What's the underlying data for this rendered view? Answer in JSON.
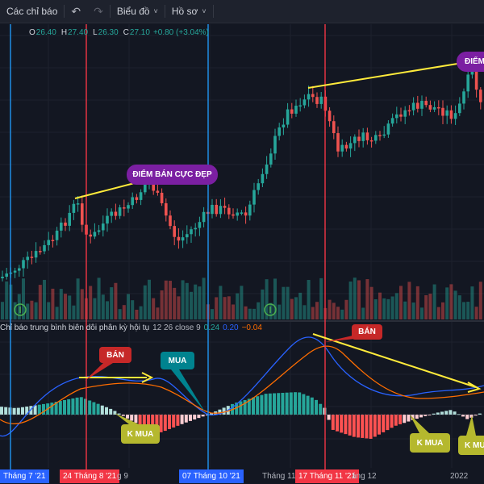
{
  "toolbar": {
    "indicators_label": "Các chỉ báo",
    "undo_icon": "undo-icon",
    "redo_icon": "redo-icon",
    "charts_label": "Biểu đồ",
    "profile_label": "Hồ sơ",
    "chevron": "˅"
  },
  "ohlc": {
    "o_label": "O",
    "o_value": "26.40",
    "h_label": "H",
    "h_value": "27.40",
    "l_label": "L",
    "l_value": "26.30",
    "c_label": "C",
    "c_value": "27.10",
    "change": "+0.80 (+3.04%)"
  },
  "indicator_legend": {
    "name": "Chỉ báo trung bình biên dôi phân kỳ hội tụ",
    "params": "12 26 close 9",
    "v1": "0.24",
    "v2": "0.20",
    "v3": "−0.04"
  },
  "annotations": {
    "sell1": "ĐIỂM BÁN CỰC ĐẸP",
    "sell2": "ĐIỂM",
    "ban1": "BÁN",
    "ban2": "BÁN",
    "mua": "MUA",
    "kmua1": "K MUA",
    "kmua2": "K MUA",
    "kmua3": "K MUA"
  },
  "time_axis": {
    "badge1": "Tháng 7 '21",
    "badge2": "24 Tháng 8 '21",
    "badge3": "07 Tháng 10 '21",
    "badge4": "17 Tháng 11 '21",
    "label_9": "g 9",
    "label_11": "Tháng 11",
    "label_12": "áng 12",
    "label_2022": "2022"
  },
  "colors": {
    "background": "#131722",
    "up": "#26a69a",
    "down": "#ef5350",
    "blue_line": "#2196f3",
    "red_line": "#f23645",
    "macd": "#2962ff",
    "signal": "#ff6d00",
    "trend": "#ffeb3b",
    "purple": "#7b1fa2",
    "callout_red": "#c62828",
    "callout_teal": "#00838f",
    "callout_olive": "#b5b82e"
  }
}
